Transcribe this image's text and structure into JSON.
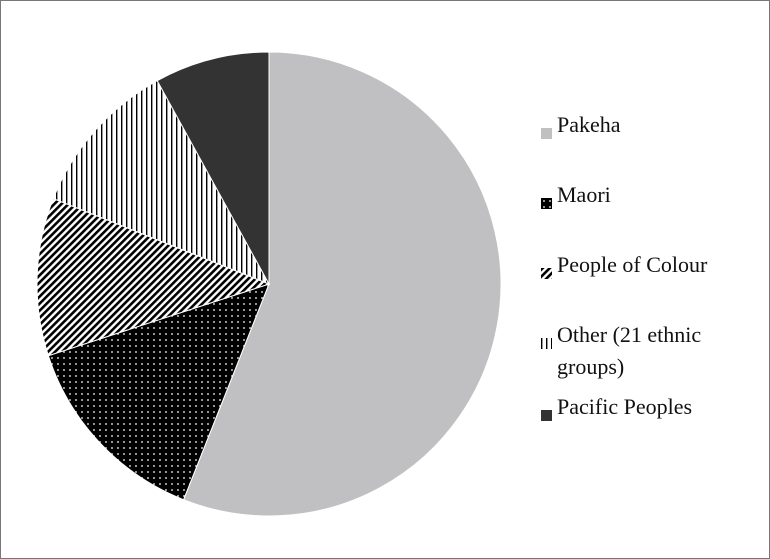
{
  "chart_data": {
    "type": "pie",
    "categories": [
      "Pakeha",
      "Maori",
      "People of Colour",
      "Other (21 ethnic groups)",
      "Pacific Peoples"
    ],
    "values": [
      56,
      14,
      11,
      11,
      8
    ],
    "colors": [
      "#c0c0c2",
      "#000000",
      "#000000",
      "#000000",
      "#333333"
    ],
    "patterns": [
      "solid",
      "dots",
      "diagonal",
      "vertical",
      "solid"
    ],
    "start_angle": 0,
    "direction": "clockwise",
    "legend": "right"
  }
}
